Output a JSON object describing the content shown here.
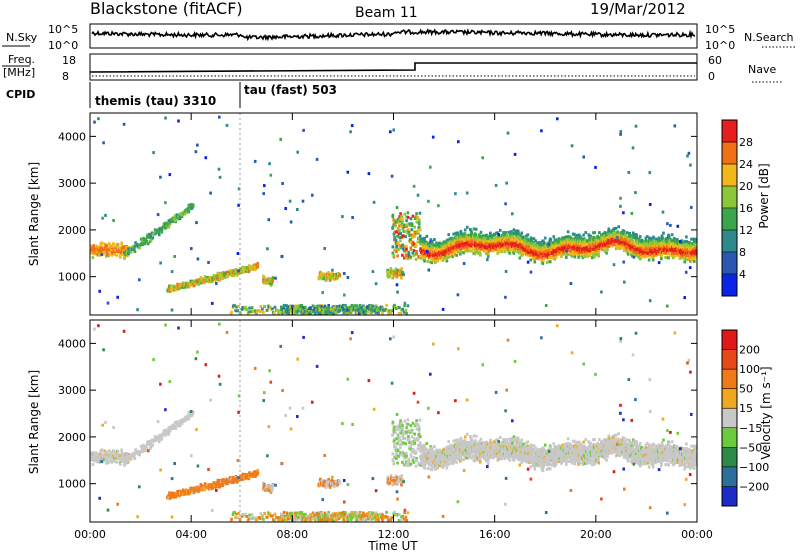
{
  "header": {
    "station": "Blackstone (fitACF)",
    "beam": "Beam 11",
    "date": "19/Mar/2012"
  },
  "strips": {
    "nsky_label": "N.Sky",
    "nsearch_label": "N.Search",
    "nsky_ticks": [
      "10^5",
      "10^0"
    ],
    "nsearch_ticks": [
      "10^5",
      "10^0"
    ],
    "freq_label": "Freq.",
    "freq_unit": "[MHz]",
    "freq_ticks": [
      "18",
      "8"
    ],
    "nave_label": "Nave",
    "nave_ticks": [
      "60",
      "0"
    ],
    "cpid_label": "CPID",
    "cpid_segments": [
      {
        "label": "themis (tau) 3310",
        "start_hour": 0
      },
      {
        "label": "tau (fast) 503",
        "start_hour": 6
      }
    ]
  },
  "chart_data": [
    {
      "type": "heatmap",
      "name": "power",
      "xlabel": "",
      "ylabel": "Slant Range [km]",
      "xlim": [
        0,
        24
      ],
      "ylim": [
        180,
        4500
      ],
      "yticks": [
        1000,
        2000,
        3000,
        4000
      ],
      "colorbar": {
        "label": "Power [dB]",
        "ticks": [
          "4",
          "8",
          "12",
          "16",
          "20",
          "24",
          "28"
        ],
        "colors": [
          "#0a23e6",
          "#2a56b4",
          "#2c8a8c",
          "#3aa64c",
          "#8ac83a",
          "#f2b71a",
          "#f07018",
          "#e61e1e"
        ]
      }
    },
    {
      "type": "heatmap",
      "name": "velocity",
      "xlabel": "Time UT",
      "ylabel": "Slant Range [km]",
      "xlim": [
        0,
        24
      ],
      "ylim": [
        180,
        4500
      ],
      "yticks": [
        1000,
        2000,
        3000,
        4000
      ],
      "xticks": [
        "00:00",
        "04:00",
        "08:00",
        "12:00",
        "16:00",
        "20:00",
        "00:00"
      ],
      "colorbar": {
        "label": "Velocity [m s⁻¹]",
        "ticks": [
          "200",
          "100",
          "50",
          "15",
          "−15",
          "−50",
          "−100",
          "−200"
        ],
        "colors": [
          "#1c2cc8",
          "#2c6e9c",
          "#2e8a4a",
          "#6acc3c",
          "#c8c8c8",
          "#f0a820",
          "#f07a1a",
          "#e84818",
          "#e01818"
        ]
      }
    }
  ]
}
